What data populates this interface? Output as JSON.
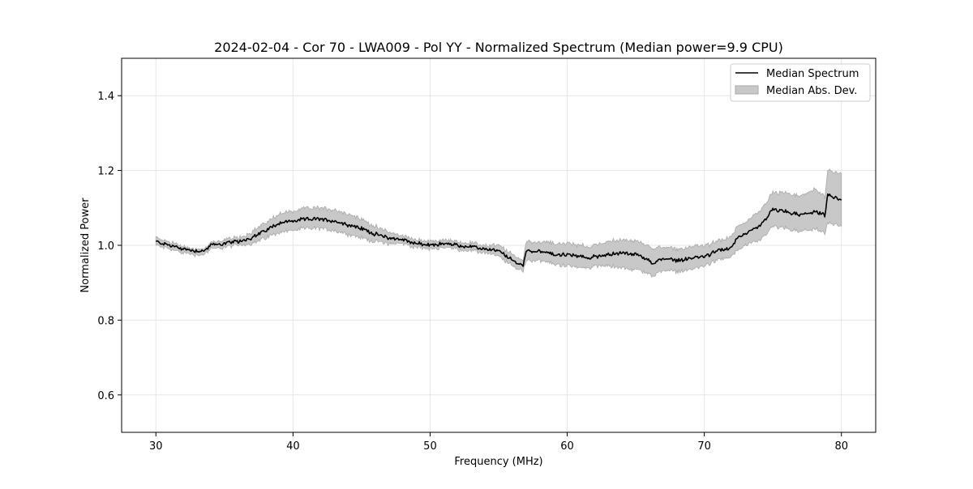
{
  "chart_data": {
    "type": "line",
    "title": "2024-02-04 - Cor 70 - LWA009 - Pol YY - Normalized Spectrum (Median power=9.9 CPU)",
    "xlabel": "Frequency (MHz)",
    "ylabel": "Normalized Power",
    "xlim": [
      27.5,
      82.5
    ],
    "ylim": [
      0.5,
      1.5
    ],
    "xticks": [
      30,
      40,
      50,
      60,
      70,
      80
    ],
    "yticks": [
      0.6,
      0.8,
      1.0,
      1.2,
      1.4
    ],
    "xtick_labels": [
      "30",
      "40",
      "50",
      "60",
      "70",
      "80"
    ],
    "ytick_labels": [
      "0.6",
      "0.8",
      "1.0",
      "1.2",
      "1.4"
    ],
    "grid": true,
    "legend_position": "top-right",
    "legend": [
      "Median Spectrum",
      "Median Abs. Dev."
    ],
    "colors": {
      "line": "#000000",
      "band_fill": "#c8c8c8",
      "band_edge": "#a9a9a9",
      "grid": "#e6e6e6"
    },
    "series": [
      {
        "name": "Median Spectrum",
        "x": [
          30,
          31,
          32,
          33,
          33.5,
          34,
          35,
          36,
          37,
          38,
          39,
          40,
          41,
          42,
          43,
          44,
          45,
          46,
          47,
          48,
          49,
          50,
          51,
          52,
          53,
          54,
          55,
          56,
          56.8,
          57,
          58,
          59,
          60,
          61,
          61.5,
          62,
          63,
          64,
          65,
          66,
          66.2,
          67,
          68,
          69,
          70,
          71,
          72,
          72.5,
          73,
          74,
          75,
          76,
          77,
          78,
          78.8,
          79,
          80
        ],
        "y": [
          1.01,
          1.0,
          0.99,
          0.985,
          0.985,
          1.0,
          1.005,
          1.01,
          1.02,
          1.04,
          1.06,
          1.065,
          1.07,
          1.07,
          1.065,
          1.055,
          1.045,
          1.03,
          1.02,
          1.015,
          1.005,
          1.0,
          1.005,
          1.0,
          0.995,
          0.99,
          0.985,
          0.96,
          0.945,
          0.985,
          0.985,
          0.975,
          0.975,
          0.97,
          0.965,
          0.97,
          0.975,
          0.98,
          0.975,
          0.96,
          0.95,
          0.965,
          0.96,
          0.965,
          0.97,
          0.985,
          0.995,
          1.025,
          1.03,
          1.05,
          1.095,
          1.09,
          1.08,
          1.09,
          1.08,
          1.135,
          1.12
        ]
      },
      {
        "name": "Median Abs. Dev.",
        "x": [
          30,
          31,
          32,
          33,
          33.5,
          34,
          35,
          36,
          37,
          38,
          39,
          40,
          41,
          42,
          43,
          44,
          45,
          46,
          47,
          48,
          49,
          50,
          51,
          52,
          53,
          54,
          55,
          56,
          56.8,
          57,
          58,
          59,
          60,
          61,
          61.5,
          62,
          63,
          64,
          65,
          66,
          66.2,
          67,
          68,
          69,
          70,
          71,
          72,
          72.5,
          73,
          74,
          75,
          76,
          77,
          78,
          78.8,
          79,
          80
        ],
        "lower": [
          1.0,
          0.99,
          0.98,
          0.975,
          0.975,
          0.99,
          0.995,
          1.0,
          1.005,
          1.02,
          1.035,
          1.04,
          1.045,
          1.045,
          1.04,
          1.03,
          1.02,
          1.01,
          1.005,
          1.005,
          0.995,
          0.99,
          0.995,
          0.99,
          0.985,
          0.98,
          0.97,
          0.945,
          0.93,
          0.96,
          0.96,
          0.95,
          0.945,
          0.94,
          0.94,
          0.945,
          0.945,
          0.94,
          0.935,
          0.925,
          0.915,
          0.935,
          0.93,
          0.935,
          0.945,
          0.96,
          0.97,
          0.99,
          1.0,
          1.01,
          1.05,
          1.045,
          1.035,
          1.045,
          1.03,
          1.06,
          1.05
        ],
        "upper": [
          1.02,
          1.01,
          0.995,
          0.99,
          0.99,
          1.005,
          1.015,
          1.02,
          1.035,
          1.06,
          1.085,
          1.09,
          1.1,
          1.1,
          1.095,
          1.085,
          1.07,
          1.05,
          1.035,
          1.025,
          1.015,
          1.01,
          1.015,
          1.01,
          1.005,
          1.0,
          1.0,
          0.975,
          0.96,
          1.01,
          1.01,
          1.005,
          1.005,
          1.0,
          0.995,
          1.0,
          1.01,
          1.015,
          1.01,
          1.0,
          0.99,
          0.995,
          0.99,
          0.995,
          1.0,
          1.01,
          1.025,
          1.055,
          1.06,
          1.09,
          1.14,
          1.14,
          1.13,
          1.15,
          1.13,
          1.2,
          1.19
        ]
      }
    ]
  }
}
